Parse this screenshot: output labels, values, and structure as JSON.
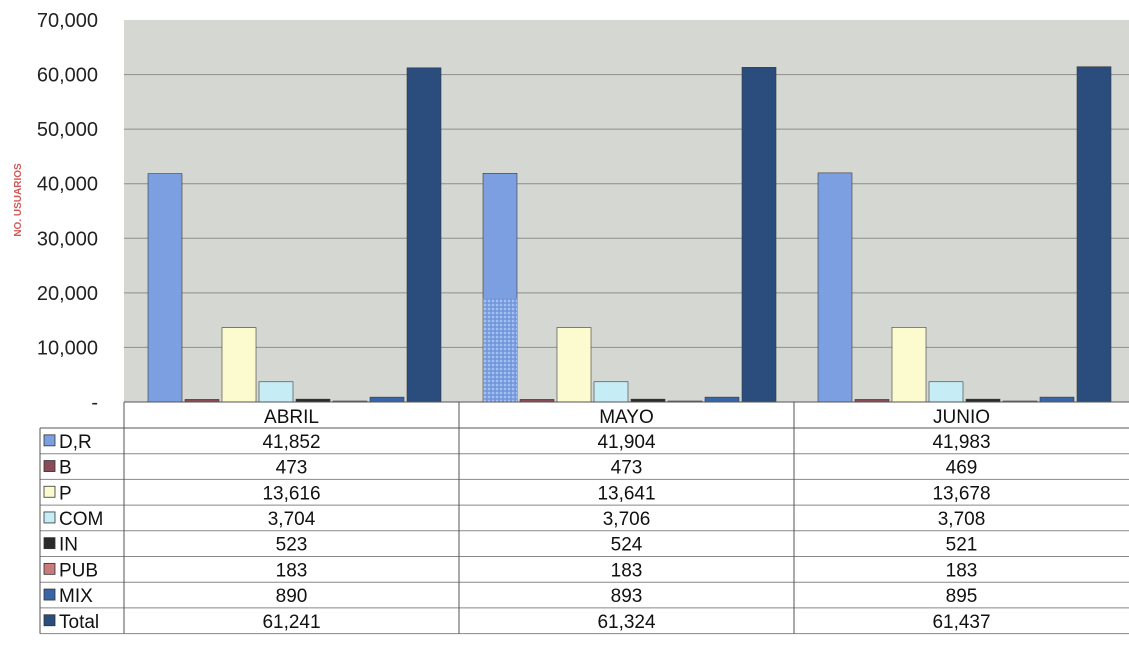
{
  "chart_data": {
    "type": "bar",
    "title": "",
    "xlabel": "",
    "ylabel": "NO. USUARIOS",
    "ylim": [
      0,
      70000
    ],
    "yticks": [
      0,
      10000,
      20000,
      30000,
      40000,
      50000,
      60000,
      70000
    ],
    "ytick_labels": [
      "-",
      "10,000",
      "20,000",
      "30,000",
      "40,000",
      "50,000",
      "60,000",
      "70,000"
    ],
    "grid": true,
    "legend": "data-table",
    "categories": [
      "ABRIL",
      "MAYO",
      "JUNIO"
    ],
    "series": [
      {
        "name": "D,R",
        "color": "#7b9fe0",
        "values": [
          41852,
          41904,
          41983
        ],
        "labels": [
          "41,852",
          "41,904",
          "41,983"
        ]
      },
      {
        "name": "B",
        "color": "#8a4a58",
        "values": [
          473,
          473,
          469
        ],
        "labels": [
          "473",
          "473",
          "469"
        ]
      },
      {
        "name": "P",
        "color": "#fbfbcf",
        "values": [
          13616,
          13641,
          13678
        ],
        "labels": [
          "13,616",
          "13,641",
          "13,678"
        ]
      },
      {
        "name": "COM",
        "color": "#c6ecf6",
        "values": [
          3704,
          3706,
          3708
        ],
        "labels": [
          "3,704",
          "3,706",
          "3,708"
        ]
      },
      {
        "name": "IN",
        "color": "#2a2a2a",
        "values": [
          523,
          524,
          521
        ],
        "labels": [
          "523",
          "524",
          "521"
        ]
      },
      {
        "name": "PUB",
        "color": "#c97a7a",
        "values": [
          183,
          183,
          183
        ],
        "labels": [
          "183",
          "183",
          "183"
        ]
      },
      {
        "name": "MIX",
        "color": "#3a64a8",
        "values": [
          890,
          893,
          895
        ],
        "labels": [
          "890",
          "893",
          "895"
        ]
      },
      {
        "name": "Total",
        "color": "#2a4d7e",
        "values": [
          61241,
          61324,
          61437
        ],
        "labels": [
          "61,241",
          "61,324",
          "61,437"
        ]
      }
    ],
    "plot_background": "#d4d7d2",
    "gridline_color": "#8c8f8b"
  }
}
